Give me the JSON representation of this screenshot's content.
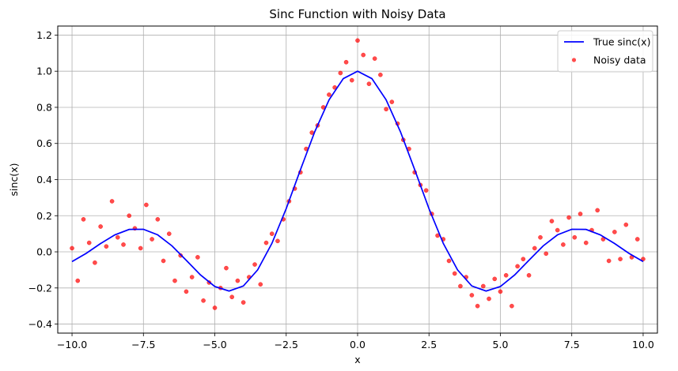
{
  "chart_data": {
    "type": "line",
    "title": "Sinc Function with Noisy Data",
    "xlabel": "x",
    "ylabel": "sinc(x)",
    "xlim": [
      -10.5,
      10.5
    ],
    "ylim": [
      -0.45,
      1.25
    ],
    "xticks": [
      -10.0,
      -7.5,
      -5.0,
      -2.5,
      0.0,
      2.5,
      5.0,
      7.5,
      10.0
    ],
    "xtick_labels": [
      "−10.0",
      "−7.5",
      "−5.0",
      "−2.5",
      "0.0",
      "2.5",
      "5.0",
      "7.5",
      "10.0"
    ],
    "yticks": [
      -0.4,
      -0.2,
      0.0,
      0.2,
      0.4,
      0.6,
      0.8,
      1.0,
      1.2
    ],
    "ytick_labels": [
      "−0.4",
      "−0.2",
      "0.0",
      "0.2",
      "0.4",
      "0.6",
      "0.8",
      "1.0",
      "1.2"
    ],
    "grid": true,
    "legend_position": "top-right",
    "series": [
      {
        "name": "True sinc(x)",
        "kind": "line",
        "color": "#0000ff",
        "x": [
          -10.0,
          -9.5,
          -9.0,
          -8.5,
          -8.0,
          -7.5,
          -7.0,
          -6.5,
          -6.0,
          -5.5,
          -5.0,
          -4.5,
          -4.0,
          -3.5,
          -3.0,
          -2.5,
          -2.0,
          -1.5,
          -1.0,
          -0.5,
          0.0,
          0.5,
          1.0,
          1.5,
          2.0,
          2.5,
          3.0,
          3.5,
          4.0,
          4.5,
          5.0,
          5.5,
          6.0,
          6.5,
          7.0,
          7.5,
          8.0,
          8.5,
          9.0,
          9.5,
          10.0
        ],
        "y": [
          -0.054,
          -0.008,
          0.046,
          0.094,
          0.124,
          0.125,
          0.094,
          0.033,
          -0.047,
          -0.128,
          -0.192,
          -0.217,
          -0.189,
          -0.1,
          0.047,
          0.239,
          0.455,
          0.665,
          0.841,
          0.959,
          1.0,
          0.959,
          0.841,
          0.665,
          0.455,
          0.239,
          0.047,
          -0.1,
          -0.189,
          -0.217,
          -0.192,
          -0.128,
          -0.047,
          0.033,
          0.094,
          0.125,
          0.124,
          0.094,
          0.046,
          -0.008,
          -0.054
        ]
      },
      {
        "name": "Noisy data",
        "kind": "scatter",
        "color": "#ff0000",
        "alpha": 0.7,
        "x": [
          -10.0,
          -9.8,
          -9.6,
          -9.4,
          -9.2,
          -9.0,
          -8.8,
          -8.6,
          -8.4,
          -8.2,
          -8.0,
          -7.8,
          -7.6,
          -7.4,
          -7.2,
          -7.0,
          -6.8,
          -6.6,
          -6.4,
          -6.2,
          -6.0,
          -5.8,
          -5.6,
          -5.4,
          -5.2,
          -5.0,
          -4.8,
          -4.6,
          -4.4,
          -4.2,
          -4.0,
          -3.8,
          -3.6,
          -3.4,
          -3.2,
          -3.0,
          -2.8,
          -2.6,
          -2.4,
          -2.2,
          -2.0,
          -1.8,
          -1.6,
          -1.4,
          -1.2,
          -1.0,
          -0.8,
          -0.6,
          -0.4,
          -0.2,
          0.0,
          0.2,
          0.4,
          0.6,
          0.8,
          1.0,
          1.2,
          1.4,
          1.6,
          1.8,
          2.0,
          2.2,
          2.4,
          2.6,
          2.8,
          3.0,
          3.2,
          3.4,
          3.6,
          3.8,
          4.0,
          4.2,
          4.4,
          4.6,
          4.8,
          5.0,
          5.2,
          5.4,
          5.6,
          5.8,
          6.0,
          6.2,
          6.4,
          6.6,
          6.8,
          7.0,
          7.2,
          7.4,
          7.6,
          7.8,
          8.0,
          8.2,
          8.4,
          8.6,
          8.8,
          9.0,
          9.2,
          9.4,
          9.6,
          9.8,
          10.0
        ],
        "y": [
          0.02,
          -0.16,
          0.18,
          0.05,
          -0.06,
          0.14,
          0.03,
          0.28,
          0.08,
          0.04,
          0.2,
          0.13,
          0.02,
          0.26,
          0.07,
          0.18,
          -0.05,
          0.1,
          -0.16,
          -0.02,
          -0.22,
          -0.14,
          -0.03,
          -0.27,
          -0.17,
          -0.31,
          -0.2,
          -0.09,
          -0.25,
          -0.16,
          -0.28,
          -0.14,
          -0.07,
          -0.18,
          0.05,
          0.1,
          0.06,
          0.18,
          0.28,
          0.35,
          0.44,
          0.57,
          0.66,
          0.7,
          0.8,
          0.87,
          0.91,
          0.99,
          1.05,
          0.95,
          1.17,
          1.09,
          0.93,
          1.07,
          0.98,
          0.79,
          0.83,
          0.71,
          0.62,
          0.57,
          0.44,
          0.37,
          0.34,
          0.21,
          0.09,
          0.07,
          -0.05,
          -0.12,
          -0.19,
          -0.14,
          -0.24,
          -0.3,
          -0.19,
          -0.26,
          -0.15,
          -0.22,
          -0.13,
          -0.3,
          -0.08,
          -0.04,
          -0.13,
          0.02,
          0.08,
          -0.01,
          0.17,
          0.12,
          0.04,
          0.19,
          0.08,
          0.21,
          0.05,
          0.12,
          0.23,
          0.07,
          -0.05,
          0.11,
          -0.04,
          0.15,
          -0.03,
          0.07,
          -0.04
        ]
      }
    ]
  }
}
